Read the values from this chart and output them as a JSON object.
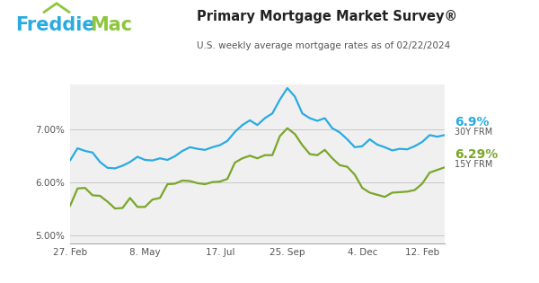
{
  "title": "Primary Mortgage Market Survey®",
  "subtitle": "U.S. weekly average mortgage rates as of 02/22/2024",
  "freddie_blue": "#29ABE2",
  "freddie_green": "#8DC63F",
  "line_blue": "#29ABE2",
  "line_green": "#7AA62A",
  "bg_color": "#FFFFFF",
  "plot_bg": "#F0F0F0",
  "label_30y": "6.9%",
  "label_30y_sub": "30Y FRM",
  "label_15y": "6.29%",
  "label_15y_sub": "15Y FRM",
  "xtick_labels": [
    "27. Feb",
    "8. May",
    "17. Jul",
    "25. Sep",
    "4. Dec",
    "12. Feb"
  ],
  "ytick_labels": [
    "5.00%",
    "6.00%",
    "7.00%"
  ],
  "ylim": [
    4.85,
    7.85
  ],
  "y30": [
    6.42,
    6.65,
    6.6,
    6.57,
    6.39,
    6.28,
    6.27,
    6.32,
    6.39,
    6.49,
    6.43,
    6.42,
    6.46,
    6.43,
    6.5,
    6.6,
    6.67,
    6.64,
    6.62,
    6.67,
    6.71,
    6.79,
    6.96,
    7.09,
    7.18,
    7.09,
    7.22,
    7.31,
    7.57,
    7.79,
    7.63,
    7.31,
    7.22,
    7.17,
    7.22,
    7.03,
    6.95,
    6.82,
    6.67,
    6.69,
    6.82,
    6.72,
    6.67,
    6.61,
    6.64,
    6.63,
    6.69,
    6.77,
    6.9,
    6.87,
    6.9
  ],
  "y15": [
    5.56,
    5.89,
    5.9,
    5.76,
    5.75,
    5.64,
    5.51,
    5.52,
    5.71,
    5.54,
    5.54,
    5.68,
    5.71,
    5.97,
    5.98,
    6.04,
    6.03,
    5.99,
    5.97,
    6.01,
    6.02,
    6.07,
    6.38,
    6.46,
    6.51,
    6.46,
    6.52,
    6.52,
    6.88,
    7.03,
    6.92,
    6.71,
    6.54,
    6.52,
    6.62,
    6.46,
    6.33,
    6.3,
    6.15,
    5.9,
    5.81,
    5.77,
    5.73,
    5.81,
    5.82,
    5.83,
    5.86,
    5.98,
    6.19,
    6.24,
    6.29
  ],
  "xtick_positions": [
    0,
    10,
    20,
    29,
    39,
    47
  ]
}
